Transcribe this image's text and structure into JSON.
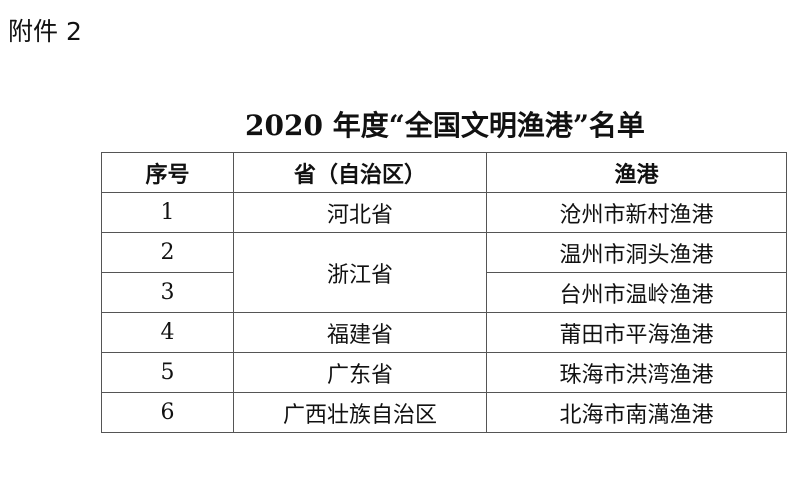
{
  "attachment_label": "附件 2",
  "title": "2020 年度“全国文明渔港”名单",
  "table": {
    "headers": [
      "序号",
      "省（自治区）",
      "渔港"
    ],
    "rows": [
      {
        "no": "1",
        "province": "河北省",
        "port": "沧州市新村渔港"
      },
      {
        "no": "2",
        "province": "浙江省",
        "port": "温州市洞头渔港"
      },
      {
        "no": "3",
        "province": "",
        "port": "台州市温岭渔港"
      },
      {
        "no": "4",
        "province": "福建省",
        "port": "莆田市平海渔港"
      },
      {
        "no": "5",
        "province": "广东省",
        "port": "珠海市洪湾渔港"
      },
      {
        "no": "6",
        "province": "广西壮族自治区",
        "port": "北海市南澫渔港"
      }
    ]
  }
}
